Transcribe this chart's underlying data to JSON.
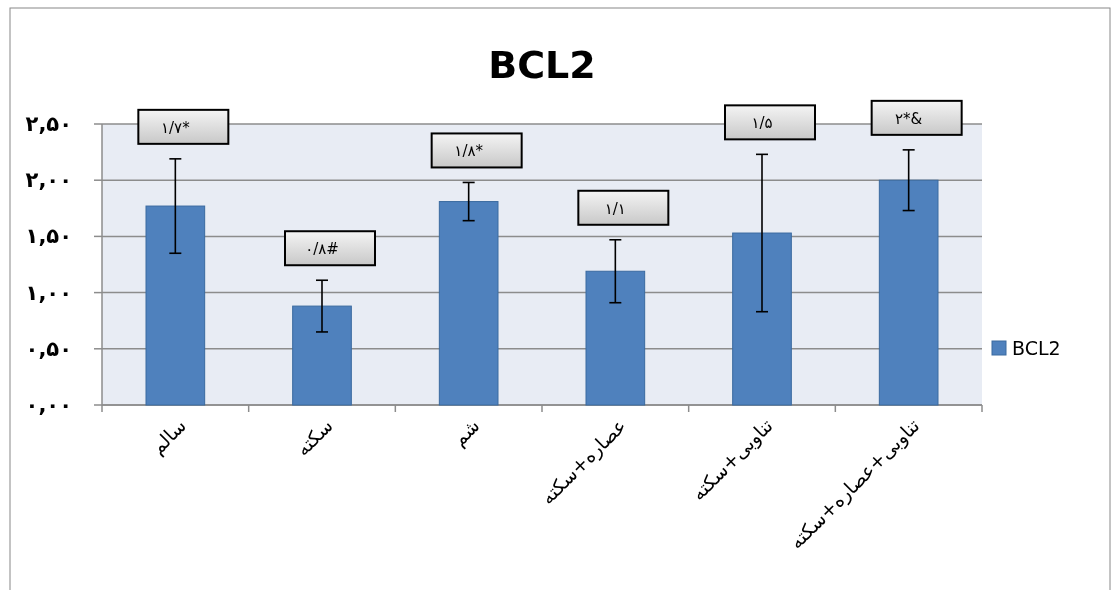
{
  "chart_data": {
    "type": "bar",
    "title": "BCL2",
    "categories": [
      "سالم",
      "سکته",
      "شم",
      "عصاره+سکته",
      "تناوبی+سکته",
      "تناوبی+عصاره+سکته"
    ],
    "series": [
      {
        "name": "BCL2",
        "color": "#4f81bd",
        "values": [
          1.77,
          0.88,
          1.81,
          1.19,
          1.53,
          2.0
        ],
        "errors": [
          0.42,
          0.23,
          0.17,
          0.28,
          0.7,
          0.27
        ]
      }
    ],
    "ylim": [
      0,
      2.5
    ],
    "yticks": [
      {
        "value": 0,
        "label": "۰,۰۰"
      },
      {
        "value": 0.5,
        "label": "۰,۵۰"
      },
      {
        "value": 1,
        "label": "۱,۰۰"
      },
      {
        "value": 1.5,
        "label": "۱,۵۰"
      },
      {
        "value": 2,
        "label": "۲,۰۰"
      },
      {
        "value": 2.5,
        "label": "۲,۵۰"
      }
    ],
    "grid": "y",
    "legend": "right",
    "annotations": [
      "۱/۷*",
      "۰/۸#",
      "۱/۸*",
      "۱/۱",
      "۱/۵",
      "۲*&"
    ]
  }
}
